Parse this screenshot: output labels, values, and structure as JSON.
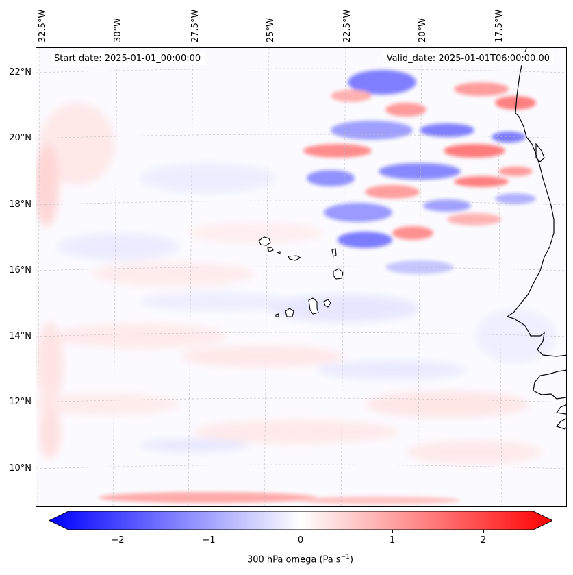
{
  "start_date": "Start date: 2025-01-01_00:00:00",
  "valid_date": "Valid_date: 2025-01-01T06:00:00.00",
  "lon_labels": [
    "32.5°W",
    "30°W",
    "27.5°W",
    "25°W",
    "22.5°W",
    "20°W",
    "17.5°W"
  ],
  "lat_labels": [
    "22°N",
    "20°N",
    "18°N",
    "16°N",
    "14°N",
    "12°N",
    "10°N"
  ],
  "colorbar": {
    "label_prefix": "300 hPa omega (Pa s",
    "label_exp": "−1",
    "label_suffix": ")",
    "ticks": [
      "−2",
      "−1",
      "0",
      "1",
      "2"
    ],
    "range": [
      -2.6,
      2.6
    ],
    "low_color": "#0000ff",
    "mid_color": "#ffffff",
    "high_color": "#ff0000"
  },
  "map": {
    "projection": "lambert-conformal",
    "extent_lon": [
      -32.5,
      -15.5
    ],
    "extent_lat": [
      9,
      22.7
    ],
    "gridlines": true,
    "coastline_color": "#000000"
  }
}
